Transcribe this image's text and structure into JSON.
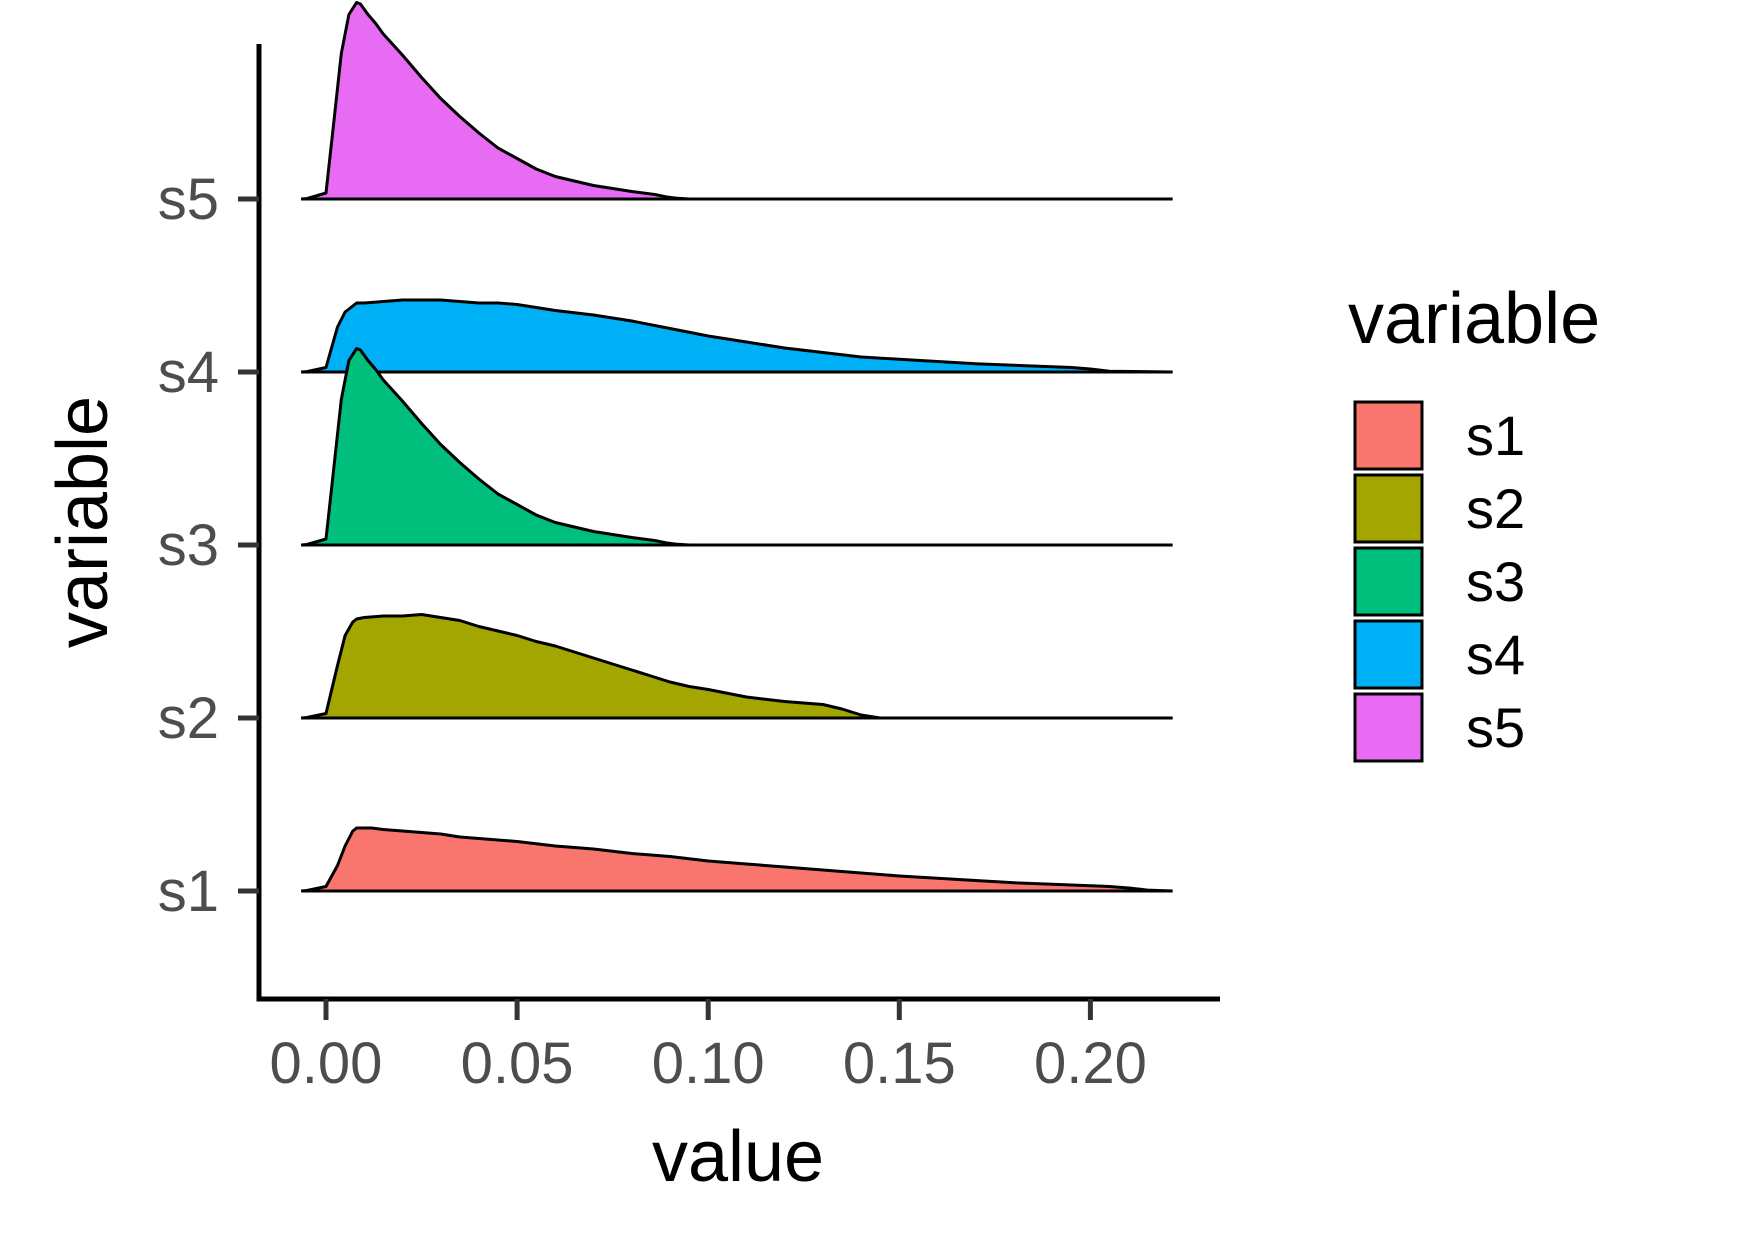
{
  "chart_data": {
    "type": "area",
    "subtype": "ridgeline-density",
    "xlabel": "value",
    "ylabel": "variable",
    "xlim": [
      -0.035,
      0.235
    ],
    "x_ticks": [
      0.0,
      0.05,
      0.1,
      0.15,
      0.2
    ],
    "x_tick_labels": [
      "0.00",
      "0.05",
      "0.10",
      "0.15",
      "0.20"
    ],
    "categories": [
      "s1",
      "s2",
      "s3",
      "s4",
      "s5"
    ],
    "grid": false,
    "legend": {
      "title": "variable",
      "position": "right",
      "entries": [
        "s1",
        "s2",
        "s3",
        "s4",
        "s5"
      ]
    },
    "series": [
      {
        "name": "s1",
        "color": "#F8766D",
        "x": [
          -0.0065,
          -0.005,
          0.0,
          0.003,
          0.005,
          0.007,
          0.008,
          0.01,
          0.012,
          0.015,
          0.02,
          0.025,
          0.03,
          0.035,
          0.04,
          0.05,
          0.06,
          0.065,
          0.07,
          0.08,
          0.09,
          0.1,
          0.11,
          0.12,
          0.13,
          0.14,
          0.15,
          0.16,
          0.17,
          0.18,
          0.19,
          0.2,
          0.205,
          0.21,
          0.215,
          0.2215
        ],
        "height": [
          0.0,
          0.003,
          0.03,
          0.17,
          0.3,
          0.4,
          0.42,
          0.42,
          0.42,
          0.41,
          0.4,
          0.39,
          0.38,
          0.36,
          0.35,
          0.33,
          0.3,
          0.29,
          0.28,
          0.25,
          0.23,
          0.2,
          0.18,
          0.16,
          0.14,
          0.12,
          0.1,
          0.085,
          0.07,
          0.055,
          0.045,
          0.035,
          0.03,
          0.02,
          0.006,
          0.0
        ]
      },
      {
        "name": "s2",
        "color": "#A3A500",
        "x": [
          -0.0065,
          -0.005,
          0.0,
          0.003,
          0.005,
          0.007,
          0.008,
          0.01,
          0.015,
          0.02,
          0.025,
          0.03,
          0.035,
          0.04,
          0.045,
          0.05,
          0.055,
          0.06,
          0.065,
          0.07,
          0.075,
          0.08,
          0.085,
          0.09,
          0.095,
          0.1,
          0.11,
          0.12,
          0.13,
          0.135,
          0.14,
          0.145,
          0.2215
        ],
        "height": [
          0.0,
          0.003,
          0.03,
          0.35,
          0.55,
          0.64,
          0.66,
          0.67,
          0.68,
          0.68,
          0.69,
          0.67,
          0.65,
          0.61,
          0.58,
          0.55,
          0.51,
          0.48,
          0.44,
          0.4,
          0.36,
          0.32,
          0.28,
          0.24,
          0.21,
          0.19,
          0.14,
          0.11,
          0.09,
          0.06,
          0.02,
          0.0,
          0.0
        ]
      },
      {
        "name": "s3",
        "color": "#00BF7D",
        "x": [
          -0.0065,
          -0.005,
          0.0,
          0.002,
          0.004,
          0.006,
          0.008,
          0.009,
          0.011,
          0.013,
          0.015,
          0.02,
          0.025,
          0.03,
          0.035,
          0.04,
          0.045,
          0.05,
          0.055,
          0.06,
          0.065,
          0.07,
          0.075,
          0.08,
          0.083,
          0.086,
          0.089,
          0.092,
          0.095,
          0.2215
        ],
        "height": [
          0.0,
          0.003,
          0.04,
          0.5,
          0.97,
          1.23,
          1.31,
          1.3,
          1.23,
          1.17,
          1.1,
          0.96,
          0.81,
          0.67,
          0.55,
          0.44,
          0.34,
          0.27,
          0.2,
          0.15,
          0.12,
          0.09,
          0.07,
          0.05,
          0.04,
          0.03,
          0.015,
          0.005,
          0.0,
          0.0
        ]
      },
      {
        "name": "s4",
        "color": "#00B0F6",
        "x": [
          -0.0065,
          -0.005,
          0.0,
          0.003,
          0.005,
          0.007,
          0.008,
          0.01,
          0.015,
          0.02,
          0.025,
          0.03,
          0.035,
          0.04,
          0.045,
          0.05,
          0.055,
          0.06,
          0.07,
          0.08,
          0.09,
          0.1,
          0.11,
          0.12,
          0.13,
          0.14,
          0.15,
          0.16,
          0.17,
          0.18,
          0.19,
          0.195,
          0.2,
          0.205,
          0.2215
        ],
        "height": [
          0.0,
          0.003,
          0.03,
          0.3,
          0.4,
          0.44,
          0.46,
          0.46,
          0.47,
          0.48,
          0.48,
          0.48,
          0.47,
          0.46,
          0.46,
          0.45,
          0.43,
          0.41,
          0.38,
          0.34,
          0.29,
          0.24,
          0.2,
          0.16,
          0.13,
          0.1,
          0.085,
          0.07,
          0.055,
          0.045,
          0.035,
          0.03,
          0.02,
          0.005,
          0.0
        ]
      },
      {
        "name": "s5",
        "color": "#E76BF3",
        "x": [
          -0.0065,
          -0.005,
          0.0,
          0.002,
          0.004,
          0.006,
          0.008,
          0.009,
          0.011,
          0.013,
          0.015,
          0.02,
          0.025,
          0.03,
          0.035,
          0.04,
          0.045,
          0.05,
          0.055,
          0.06,
          0.065,
          0.07,
          0.075,
          0.08,
          0.083,
          0.086,
          0.089,
          0.092,
          0.095,
          0.2215
        ],
        "height": [
          0.0,
          0.003,
          0.04,
          0.5,
          0.97,
          1.23,
          1.31,
          1.3,
          1.23,
          1.17,
          1.1,
          0.96,
          0.81,
          0.67,
          0.55,
          0.44,
          0.34,
          0.27,
          0.2,
          0.15,
          0.12,
          0.09,
          0.07,
          0.05,
          0.04,
          0.03,
          0.015,
          0.005,
          0.0,
          0.0
        ]
      }
    ]
  }
}
